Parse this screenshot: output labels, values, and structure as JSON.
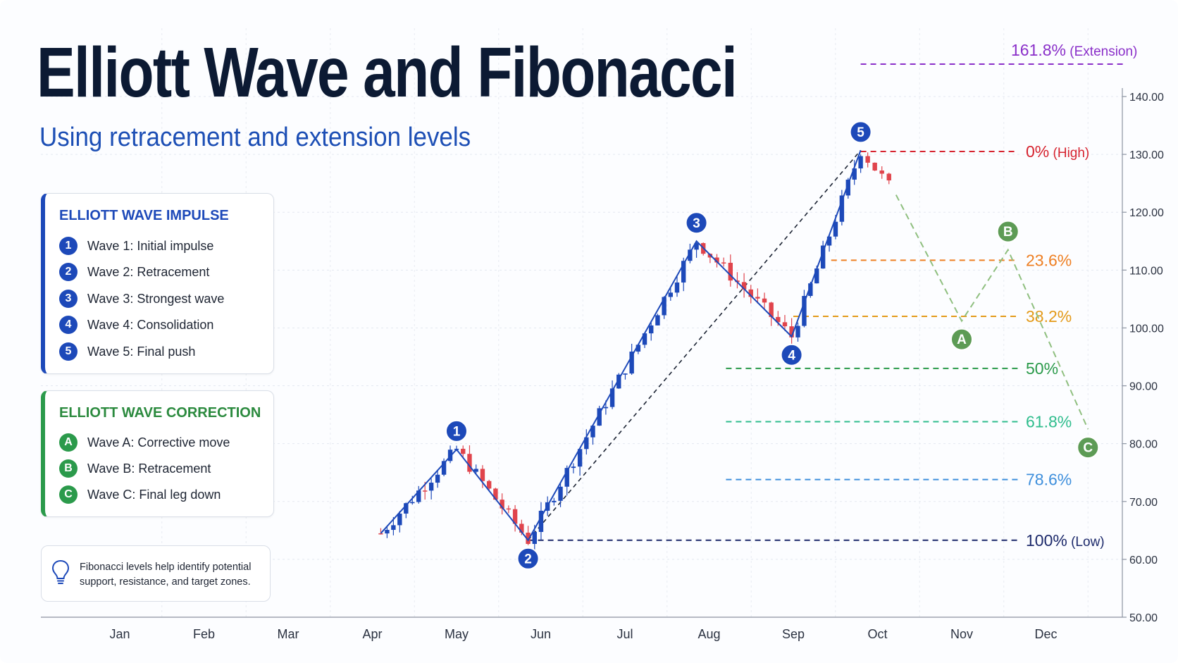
{
  "header": {
    "title": "Elliott Wave and Fibonacci",
    "subtitle": "Using retracement and extension levels"
  },
  "impulse_panel": {
    "title": "ELLIOTT WAVE IMPULSE",
    "items": [
      {
        "badge": "1",
        "label": "Wave 1: Initial impulse"
      },
      {
        "badge": "2",
        "label": "Wave 2: Retracement"
      },
      {
        "badge": "3",
        "label": "Wave 3: Strongest wave"
      },
      {
        "badge": "4",
        "label": "Wave 4: Consolidation"
      },
      {
        "badge": "5",
        "label": "Wave 5: Final push"
      }
    ]
  },
  "correction_panel": {
    "title": "ELLIOTT WAVE CORRECTION",
    "items": [
      {
        "badge": "A",
        "label": "Wave A: Corrective move"
      },
      {
        "badge": "B",
        "label": "Wave B: Retracement"
      },
      {
        "badge": "C",
        "label": "Wave C: Final leg down"
      }
    ]
  },
  "tip": {
    "icon": "lightbulb-icon",
    "text": "Fibonacci levels help identify potential support, resistance, and target zones."
  },
  "colors": {
    "impulse": "#1d49b9",
    "correction": "#2b9a4b",
    "bull_candle": "#1d49b9",
    "bear_candle": "#e0444c"
  },
  "chart_data": {
    "type": "candlestick",
    "x_axis": {
      "type": "month",
      "ticks": [
        "Jan",
        "Feb",
        "Mar",
        "Apr",
        "May",
        "Jun",
        "Jul",
        "Aug",
        "Sep",
        "Oct",
        "Nov",
        "Dec"
      ]
    },
    "y_axis": {
      "range": [
        50,
        140
      ],
      "ticks": [
        "50.00",
        "60.00",
        "70.00",
        "80.00",
        "90.00",
        "100.00",
        "110.00",
        "120.00",
        "130.00",
        "140.00"
      ],
      "position": "right"
    },
    "grid": true,
    "impulse_waves": [
      {
        "label": "1",
        "x": 4.0,
        "y": 79
      },
      {
        "label": "2",
        "x": 4.85,
        "y": 63.3
      },
      {
        "label": "3",
        "x": 6.85,
        "y": 115
      },
      {
        "label": "4",
        "x": 7.98,
        "y": 98.5
      },
      {
        "label": "5",
        "x": 8.8,
        "y": 130.7
      }
    ],
    "impulse_start": {
      "x": 3.1,
      "y": 64.5
    },
    "correction_waves": [
      {
        "label": "A",
        "x": 10.0,
        "y": 101.2
      },
      {
        "label": "B",
        "x": 10.55,
        "y": 113.5
      },
      {
        "label": "C",
        "x": 11.5,
        "y": 82.5
      }
    ],
    "correction_start": {
      "x": 9.22,
      "y": 123
    },
    "fibonacci_levels": [
      {
        "label": "161.8%",
        "note": "(Extension)",
        "value": 145.6,
        "color": "#8a2fc9",
        "x_start": 8.8
      },
      {
        "label": "0%",
        "note": "(High)",
        "value": 130.5,
        "color": "#d6232f",
        "x_start": 8.8
      },
      {
        "label": "23.6%",
        "note": "",
        "value": 111.7,
        "color": "#ee7f22",
        "x_start": 8.45
      },
      {
        "label": "38.2%",
        "note": "",
        "value": 102.0,
        "color": "#e39a19",
        "x_start": 8.0
      },
      {
        "label": "50%",
        "note": "",
        "value": 93.0,
        "color": "#2a9a4a",
        "x_start": 7.2
      },
      {
        "label": "61.8%",
        "note": "",
        "value": 83.8,
        "color": "#2fbd8d",
        "x_start": 7.2
      },
      {
        "label": "78.6%",
        "note": "",
        "value": 73.8,
        "color": "#3e8fdc",
        "x_start": 7.2
      },
      {
        "label": "100%",
        "note": "(Low)",
        "value": 63.3,
        "color": "#1d2a6b",
        "x_start": 4.85
      }
    ],
    "trendlines": [
      {
        "from": {
          "x": 4.85,
          "y": 63.3
        },
        "to": {
          "x": 8.8,
          "y": 130.7
        }
      }
    ]
  }
}
